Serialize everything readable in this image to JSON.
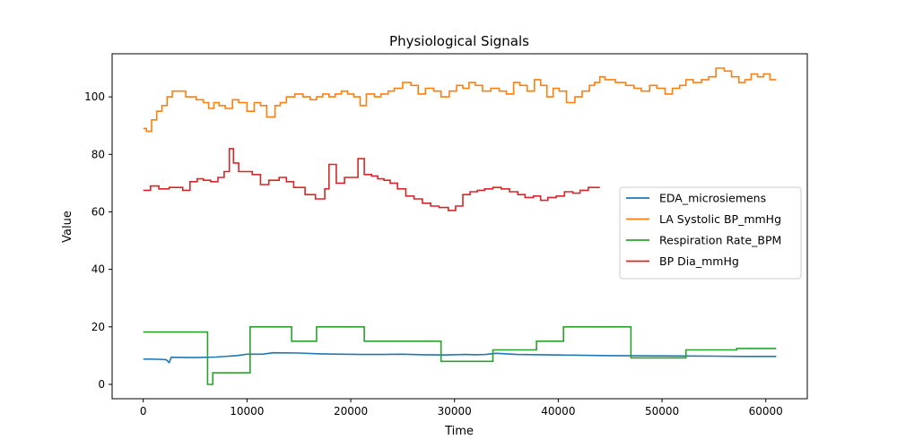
{
  "chart_data": {
    "type": "line",
    "title": "Physiological Signals",
    "xlabel": "Time",
    "ylabel": "Value",
    "xlim": [
      -3000,
      64000
    ],
    "ylim": [
      -5,
      115
    ],
    "xticks": [
      0,
      10000,
      20000,
      30000,
      40000,
      50000,
      60000
    ],
    "yticks": [
      0,
      20,
      40,
      60,
      80,
      100
    ],
    "grid": false,
    "legend_position": "center-right",
    "series": [
      {
        "name": "EDA_microsiemens",
        "color": "#1f77b4",
        "step": false,
        "x": [
          0,
          1500,
          2200,
          2500,
          2700,
          3000,
          5000,
          7000,
          9000,
          10000,
          11500,
          12500,
          15000,
          17000,
          19000,
          21000,
          23000,
          25000,
          27000,
          29000,
          31000,
          32000,
          33000,
          34000,
          36000,
          40000,
          45000,
          50000,
          55000,
          58000,
          61000
        ],
        "y": [
          8.8,
          8.7,
          8.6,
          7.6,
          9.4,
          9.4,
          9.3,
          9.5,
          10.0,
          10.5,
          10.5,
          11.0,
          10.9,
          10.6,
          10.5,
          10.4,
          10.4,
          10.5,
          10.3,
          10.2,
          10.4,
          10.3,
          10.4,
          10.8,
          10.4,
          10.2,
          10.0,
          9.9,
          9.8,
          9.7,
          9.7
        ]
      },
      {
        "name": "LA Systolic BP_mmHg",
        "color": "#ff7f0e",
        "step": true,
        "x": [
          0,
          300,
          800,
          1300,
          1800,
          2300,
          2800,
          3300,
          4100,
          5100,
          5800,
          6300,
          6800,
          7300,
          7900,
          8600,
          9200,
          10000,
          10700,
          11300,
          11900,
          12700,
          13200,
          13800,
          14600,
          15400,
          16100,
          16700,
          17300,
          17900,
          18500,
          19100,
          19700,
          20300,
          20900,
          21500,
          22300,
          22900,
          23600,
          24200,
          25000,
          25800,
          26500,
          27200,
          28000,
          28700,
          29500,
          30200,
          30800,
          31400,
          32000,
          32700,
          33500,
          34300,
          35000,
          35700,
          36300,
          37000,
          37700,
          38300,
          38900,
          39500,
          40100,
          40800,
          41600,
          42300,
          43000,
          43500,
          44000,
          44500,
          45500,
          46500,
          47300,
          48000,
          48800,
          49500,
          50300,
          51000,
          51700,
          52300,
          53000,
          53800,
          54500,
          55200,
          56000,
          56700,
          57400,
          58000,
          58600,
          59200,
          59800,
          60400,
          61000
        ],
        "y": [
          89,
          88,
          92,
          95,
          97,
          100,
          102,
          102,
          100,
          99,
          98,
          96,
          98,
          97,
          96,
          99,
          98,
          95,
          98,
          97,
          93,
          97,
          98,
          100,
          101,
          100,
          99,
          100,
          101,
          100,
          101,
          102,
          101,
          100,
          97,
          101,
          100,
          101,
          102,
          103,
          105,
          104,
          101,
          103,
          102,
          100,
          102,
          104,
          103,
          105,
          104,
          102,
          103,
          102,
          101,
          105,
          104,
          102,
          106,
          104,
          100,
          103,
          102,
          98,
          100,
          102,
          104,
          105,
          107,
          106,
          105,
          104,
          103,
          102,
          104,
          103,
          101,
          103,
          104,
          106,
          105,
          106,
          107,
          110,
          109,
          107,
          105,
          106,
          108,
          107,
          108,
          106,
          106
        ]
      },
      {
        "name": "Respiration Rate_BPM",
        "color": "#2ca02c",
        "step": true,
        "x": [
          0,
          6200,
          6700,
          10300,
          14300,
          16700,
          21300,
          28700,
          33700,
          37900,
          40500,
          47000,
          52300,
          57200,
          61000
        ],
        "y": [
          18.2,
          0,
          4,
          20,
          15,
          20,
          15,
          8,
          12,
          15,
          20,
          9.2,
          12,
          12.5,
          12.5
        ]
      },
      {
        "name": "BP Dia_mmHg",
        "color": "#d62728",
        "step": true,
        "x": [
          0,
          700,
          1500,
          2500,
          3800,
          4500,
          5200,
          5800,
          6500,
          7200,
          7800,
          8300,
          8700,
          9200,
          10500,
          11300,
          12100,
          13100,
          13800,
          14500,
          15600,
          16600,
          17500,
          17900,
          18600,
          19400,
          20100,
          20700,
          21300,
          22000,
          22600,
          23200,
          23800,
          24500,
          25300,
          26100,
          26900,
          27700,
          28500,
          29400,
          30100,
          30800,
          31500,
          32200,
          32900,
          33700,
          34500,
          35300,
          36100,
          36800,
          37600,
          38300,
          39000,
          39800,
          40600,
          41400,
          42100,
          42900,
          43500,
          44000
        ],
        "y": [
          67.5,
          69,
          68,
          68.5,
          67.5,
          70.5,
          71.5,
          71,
          70.5,
          72,
          74,
          82,
          77,
          74,
          73,
          69.5,
          71,
          72,
          70.5,
          68.5,
          66,
          64.5,
          68,
          76.5,
          70,
          72,
          72,
          78.5,
          73,
          72.5,
          71.5,
          71,
          70,
          68,
          65.5,
          64.5,
          63,
          62,
          61.5,
          60.5,
          62,
          66,
          67,
          67.5,
          68,
          68.5,
          68,
          67,
          66,
          65,
          65.5,
          64,
          65,
          65.5,
          67,
          66.5,
          67.5,
          68.5,
          68.5,
          68.5
        ]
      }
    ]
  }
}
